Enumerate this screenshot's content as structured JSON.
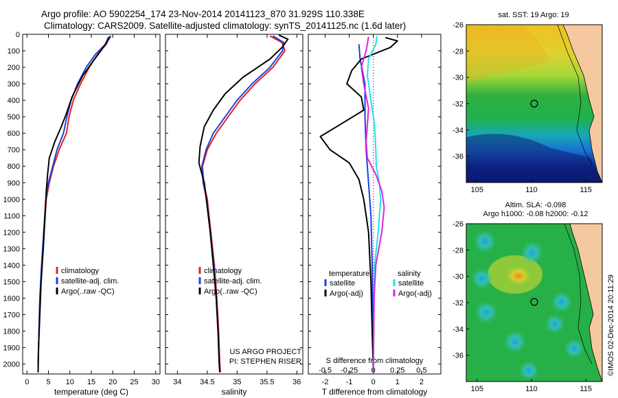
{
  "header": {
    "line1": "Argo profile: AO 5902254_174 23-Nov-2014 20141123_870 31.929S 110.338E",
    "line2": "Climatology: CARS2009. Satellite-adjusted climatology: synTS_20141125.nc (1.6d later)"
  },
  "colors": {
    "climatology": "#e02020",
    "satellite": "#1a3fe0",
    "argo": "#000000",
    "sat_salinity": "#20e0f0",
    "argo_salinity": "#e020e0",
    "land": "#f6c8a0",
    "ocean_bg": "#1cb050"
  },
  "chart_data": [
    {
      "type": "line",
      "xlabel": "temperature (deg C)",
      "ylabel": "",
      "xlim": [
        -1,
        31
      ],
      "ylim": [
        2060,
        0
      ],
      "xticks": [
        "0",
        "5",
        "10",
        "15",
        "20",
        "25",
        "30"
      ],
      "yticks": [
        "0",
        "100",
        "200",
        "300",
        "400",
        "500",
        "600",
        "700",
        "800",
        "900",
        "1000",
        "1100",
        "1200",
        "1300",
        "1400",
        "1500",
        "1600",
        "1700",
        "1800",
        "1900",
        "2000"
      ],
      "legend": [
        "climatology",
        "satellite-adj. clim.",
        "Argo(..raw -QC)"
      ],
      "series": [
        {
          "name": "climatology",
          "color": "#e02020",
          "points": [
            [
              19.2,
              15
            ],
            [
              18.5,
              60
            ],
            [
              16.5,
              120
            ],
            [
              14.5,
              200
            ],
            [
              12.5,
              300
            ],
            [
              10.8,
              400
            ],
            [
              9.8,
              500
            ],
            [
              9.2,
              600
            ],
            [
              7.5,
              700
            ],
            [
              6.2,
              800
            ],
            [
              5.2,
              900
            ],
            [
              4.5,
              1000
            ],
            [
              4.0,
              1200
            ],
            [
              3.5,
              1400
            ],
            [
              3.0,
              1600
            ],
            [
              2.8,
              1800
            ],
            [
              2.6,
              2000
            ],
            [
              2.6,
              2050
            ]
          ]
        },
        {
          "name": "satellite-adj. clim.",
          "color": "#1a3fe0",
          "points": [
            [
              19.0,
              15
            ],
            [
              18.3,
              60
            ],
            [
              16.0,
              120
            ],
            [
              13.8,
              200
            ],
            [
              11.8,
              300
            ],
            [
              10.3,
              400
            ],
            [
              9.3,
              500
            ],
            [
              8.5,
              600
            ],
            [
              7.0,
              700
            ],
            [
              6.0,
              800
            ],
            [
              5.0,
              900
            ],
            [
              4.4,
              1000
            ],
            [
              3.9,
              1200
            ],
            [
              3.4,
              1400
            ],
            [
              3.0,
              1600
            ],
            [
              2.8,
              1800
            ],
            [
              2.6,
              2000
            ],
            [
              2.6,
              2050
            ]
          ]
        },
        {
          "name": "Argo(..raw -QC)",
          "color": "#000000",
          "points": [
            [
              19.5,
              10
            ],
            [
              18.8,
              40
            ],
            [
              17.5,
              90
            ],
            [
              15.5,
              160
            ],
            [
              13.0,
              250
            ],
            [
              10.5,
              380
            ],
            [
              9.2,
              480
            ],
            [
              8.0,
              560
            ],
            [
              6.5,
              650
            ],
            [
              5.2,
              750
            ],
            [
              4.8,
              850
            ],
            [
              4.5,
              950
            ],
            [
              4.2,
              1100
            ],
            [
              3.8,
              1300
            ],
            [
              3.3,
              1500
            ],
            [
              3.0,
              1700
            ],
            [
              2.7,
              1900
            ],
            [
              2.6,
              2050
            ]
          ]
        }
      ],
      "footer": []
    },
    {
      "type": "line",
      "xlabel": "salinity",
      "ylabel": "",
      "xlim": [
        33.8,
        36.1
      ],
      "ylim": [
        2060,
        0
      ],
      "xticks": [
        "34",
        "34.5",
        "35",
        "35.5",
        "36"
      ],
      "legend": [
        "climatology",
        "satellite-adj. clim.",
        "Argo(..raw -QC)"
      ],
      "series": [
        {
          "name": "climatology",
          "color": "#e02020",
          "points": [
            [
              35.55,
              10
            ],
            [
              35.75,
              50
            ],
            [
              35.8,
              100
            ],
            [
              35.6,
              200
            ],
            [
              35.3,
              300
            ],
            [
              35.05,
              400
            ],
            [
              34.85,
              500
            ],
            [
              34.65,
              600
            ],
            [
              34.5,
              700
            ],
            [
              34.42,
              800
            ],
            [
              34.44,
              900
            ],
            [
              34.5,
              1000
            ],
            [
              34.56,
              1200
            ],
            [
              34.62,
              1400
            ],
            [
              34.66,
              1600
            ],
            [
              34.69,
              1800
            ],
            [
              34.71,
              2000
            ],
            [
              34.72,
              2050
            ]
          ]
        },
        {
          "name": "satellite-adj. clim.",
          "color": "#1a3fe0",
          "points": [
            [
              35.6,
              10
            ],
            [
              35.78,
              50
            ],
            [
              35.76,
              100
            ],
            [
              35.55,
              200
            ],
            [
              35.25,
              300
            ],
            [
              35.0,
              400
            ],
            [
              34.8,
              500
            ],
            [
              34.6,
              600
            ],
            [
              34.48,
              700
            ],
            [
              34.41,
              800
            ],
            [
              34.43,
              900
            ],
            [
              34.49,
              1000
            ],
            [
              34.55,
              1200
            ],
            [
              34.61,
              1400
            ],
            [
              34.65,
              1600
            ],
            [
              34.68,
              1800
            ],
            [
              34.7,
              2000
            ],
            [
              34.71,
              2050
            ]
          ]
        },
        {
          "name": "Argo(..raw -QC)",
          "color": "#000000",
          "points": [
            [
              35.7,
              5
            ],
            [
              35.85,
              30
            ],
            [
              35.75,
              80
            ],
            [
              35.55,
              150
            ],
            [
              35.1,
              260
            ],
            [
              34.8,
              360
            ],
            [
              34.6,
              460
            ],
            [
              34.45,
              560
            ],
            [
              34.38,
              680
            ],
            [
              34.36,
              780
            ],
            [
              34.45,
              900
            ],
            [
              34.5,
              1050
            ],
            [
              34.55,
              1200
            ],
            [
              34.6,
              1400
            ],
            [
              34.65,
              1600
            ],
            [
              34.68,
              1800
            ],
            [
              34.7,
              2000
            ],
            [
              34.71,
              2050
            ]
          ]
        }
      ],
      "footer": [
        "US ARGO PROJECT",
        "PI: STEPHEN RISER"
      ]
    },
    {
      "type": "line",
      "xlabel": "T difference from climatology",
      "top_axis_label": "S difference from climatology",
      "xlim": [
        -2.7,
        2.8
      ],
      "ylim": [
        2060,
        0
      ],
      "xticks": [
        "-2",
        "-1",
        "0",
        "1",
        "2"
      ],
      "top_xticks": [
        "-0.5",
        "-0.25",
        "0",
        "0.25",
        "0.5"
      ],
      "legend_groups": [
        {
          "title": "temperature",
          "items": [
            "satellite",
            "Argo(-adj)"
          ]
        },
        {
          "title": "salinity",
          "items": [
            "satellite",
            "Argo(-adj)"
          ]
        }
      ],
      "series": [
        {
          "name": "temperature satellite",
          "color": "#1a3fe0",
          "points": [
            [
              -0.6,
              60
            ],
            [
              -0.55,
              150
            ],
            [
              -0.35,
              300
            ],
            [
              -0.35,
              500
            ],
            [
              -0.3,
              700
            ],
            [
              -0.2,
              900
            ],
            [
              -0.1,
              1100
            ],
            [
              -0.05,
              1400
            ],
            [
              -0.02,
              1700
            ],
            [
              0,
              2050
            ]
          ]
        },
        {
          "name": "temperature Argo(-adj)",
          "color": "#000000",
          "points": [
            [
              0.5,
              20
            ],
            [
              1.0,
              40
            ],
            [
              0.7,
              80
            ],
            [
              -0.5,
              150
            ],
            [
              -0.9,
              220
            ],
            [
              -1.1,
              300
            ],
            [
              -0.5,
              380
            ],
            [
              -0.4,
              460
            ],
            [
              -1.3,
              540
            ],
            [
              -2.2,
              620
            ],
            [
              -1.8,
              700
            ],
            [
              -1.0,
              780
            ],
            [
              -0.6,
              880
            ],
            [
              -0.4,
              1000
            ],
            [
              -0.2,
              1200
            ],
            [
              -0.1,
              1500
            ],
            [
              -0.05,
              1800
            ],
            [
              0,
              2050
            ]
          ]
        },
        {
          "name": "salinity satellite",
          "color": "#20e0f0",
          "points": [
            [
              0.15,
              10
            ],
            [
              0.1,
              60
            ],
            [
              -0.2,
              150
            ],
            [
              -0.25,
              250
            ],
            [
              -0.1,
              400
            ],
            [
              0.05,
              550
            ],
            [
              0.1,
              700
            ],
            [
              0.12,
              800
            ],
            [
              0.25,
              900
            ],
            [
              0.3,
              1000
            ],
            [
              0.2,
              1200
            ],
            [
              0.05,
              1400
            ],
            [
              0.02,
              1700
            ],
            [
              0,
              2050
            ]
          ]
        },
        {
          "name": "salinity Argo(-adj)",
          "color": "#e020e0",
          "points": [
            [
              -0.2,
              15
            ],
            [
              -0.3,
              100
            ],
            [
              -0.5,
              200
            ],
            [
              -0.4,
              300
            ],
            [
              -0.2,
              450
            ],
            [
              -0.25,
              550
            ],
            [
              -0.3,
              650
            ],
            [
              -0.25,
              750
            ],
            [
              0.1,
              850
            ],
            [
              0.35,
              950
            ],
            [
              0.45,
              1050
            ],
            [
              0.35,
              1200
            ],
            [
              0.1,
              1400
            ],
            [
              0.03,
              1600
            ],
            [
              0,
              2050
            ]
          ]
        }
      ]
    }
  ],
  "maps": {
    "sst": {
      "title": "sat. SST: 19 Argo: 19",
      "yticks": [
        "-26",
        "-28",
        "-30",
        "-32",
        "-34",
        "-36"
      ],
      "xticks": [
        "105",
        "110",
        "115"
      ]
    },
    "sla": {
      "title1": "Altim. SLA: -0.098",
      "title2": "Argo h1000: -0.08 h2000: -0.12",
      "yticks": [
        "-26",
        "-28",
        "-30",
        "-32",
        "-34",
        "-36"
      ],
      "xticks": [
        "105",
        "110",
        "115"
      ]
    }
  },
  "credit": "©IMOS 02-Dec-2014 20:11:29"
}
